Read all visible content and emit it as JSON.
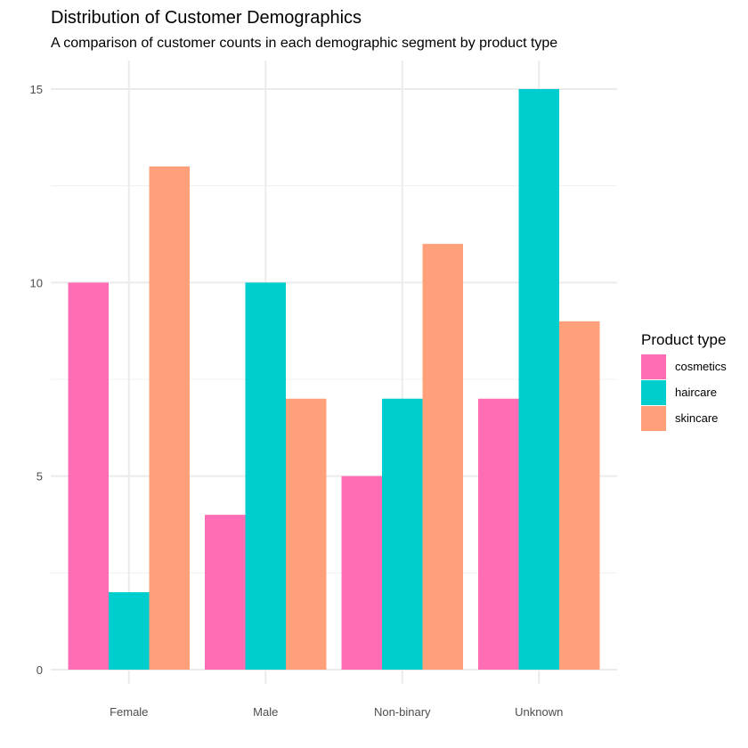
{
  "chart_data": {
    "type": "bar",
    "title": "Distribution of Customer Demographics",
    "subtitle": "A comparison of customer counts in each demographic segment by product type",
    "xlabel": "",
    "ylabel": "",
    "categories": [
      "Female",
      "Male",
      "Non-binary",
      "Unknown"
    ],
    "series": [
      {
        "name": "cosmetics",
        "color": "#ff6eb4",
        "values": [
          10,
          4,
          5,
          7
        ]
      },
      {
        "name": "haircare",
        "color": "#00cdcd",
        "values": [
          2,
          10,
          7,
          15
        ]
      },
      {
        "name": "skincare",
        "color": "#ffa07a",
        "values": [
          13,
          7,
          11,
          9
        ]
      }
    ],
    "ylim": [
      0,
      15.0
    ],
    "yticks": [
      0,
      5,
      10,
      15
    ],
    "grid": true,
    "legend": {
      "title": "Product type",
      "position": "right"
    }
  }
}
